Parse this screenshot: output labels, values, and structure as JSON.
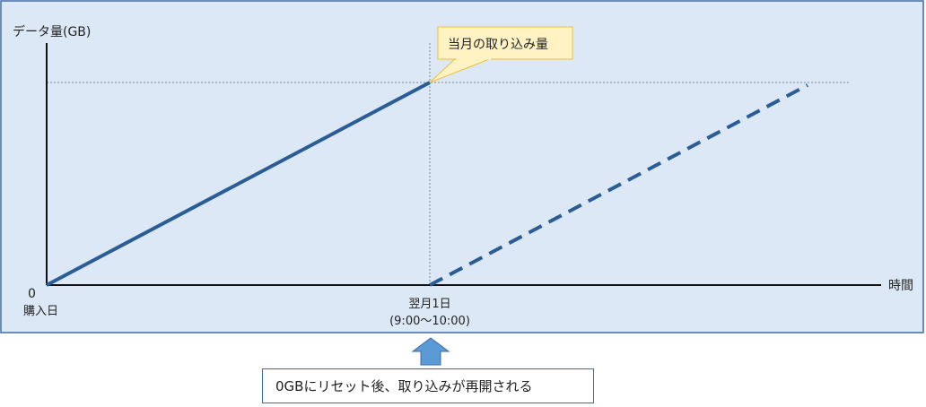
{
  "diagram": {
    "y_axis_label": "データ量(GB)",
    "x_axis_label": "時間",
    "origin_value": "0",
    "origin_label": "購入日",
    "reset_label_line1": "翌月1日",
    "reset_label_line2": "(9:00〜10:00)",
    "callout_text": "当月の取り込み量",
    "note_text": "0GBにリセット後、取り込みが再開される"
  },
  "colors": {
    "panel_fill": "#dde8f6",
    "panel_border": "#3f6aa6",
    "data_line": "#2a5d96",
    "callout_fill": "#fff3c4",
    "callout_border": "#f0c030",
    "arrow_fill": "#5b9bd5"
  }
}
